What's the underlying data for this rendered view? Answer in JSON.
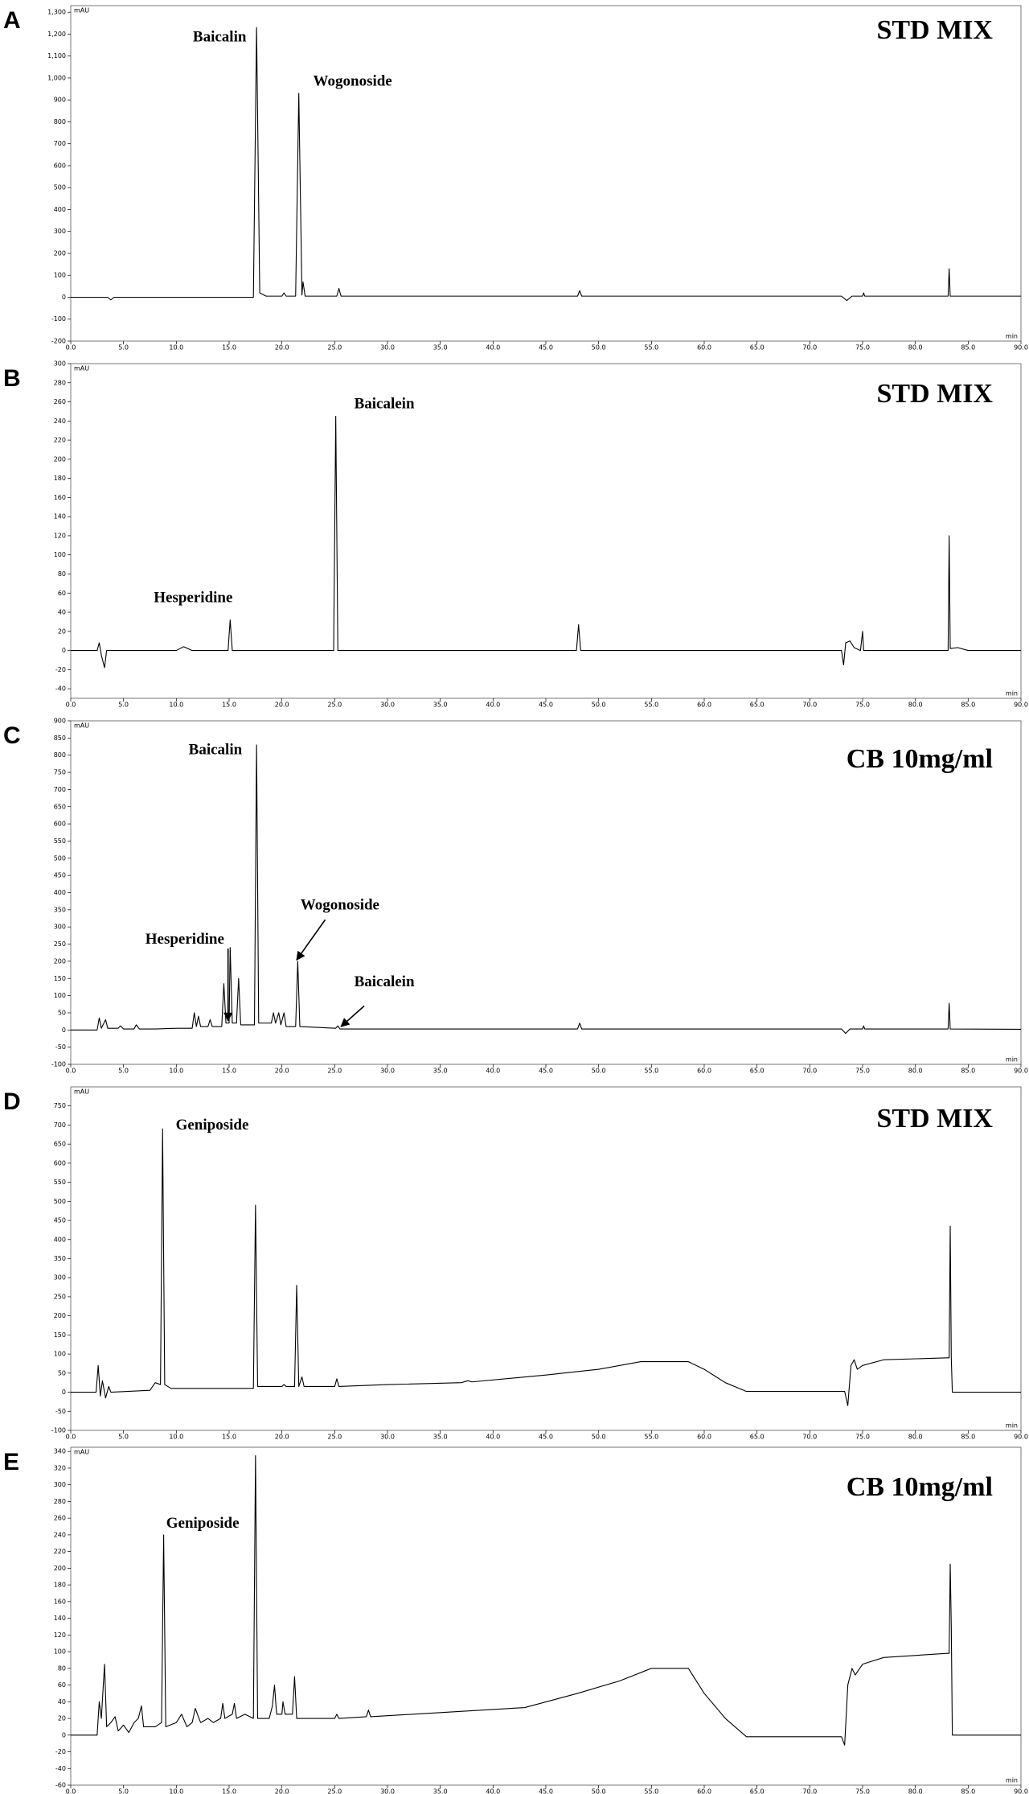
{
  "chart_data": [
    {
      "type": "line",
      "panel": "A",
      "title": "STD MIX",
      "y_label": "mAU",
      "x_label": "min",
      "color": "#000000",
      "annotations": [
        "Baicalin",
        "Wogonoside"
      ],
      "x": [
        0,
        3.5,
        3.8,
        4.1,
        17.3,
        17.6,
        17.9,
        18.5,
        20,
        20.2,
        20.4,
        21.3,
        21.6,
        21.9,
        22.0,
        22.2,
        25.2,
        25.4,
        25.6,
        48,
        48.2,
        48.4,
        73,
        73.5,
        74,
        75,
        75.1,
        75.2,
        83.1,
        83.2,
        83.3,
        90
      ],
      "values": [
        0,
        0,
        -12,
        0,
        0,
        1230,
        20,
        5,
        5,
        20,
        5,
        5,
        930,
        10,
        70,
        5,
        5,
        40,
        5,
        5,
        30,
        5,
        5,
        -15,
        5,
        5,
        20,
        5,
        5,
        130,
        5,
        5
      ],
      "xlim": [
        0,
        90
      ],
      "ylim": [
        -200,
        1330
      ],
      "yticks": [
        -200,
        -100,
        0,
        100,
        200,
        300,
        400,
        500,
        600,
        700,
        800,
        900,
        {
          "value": 1000,
          "label": "1,000"
        },
        {
          "value": 1100,
          "label": "1,100"
        },
        {
          "value": 1200,
          "label": "1,200"
        },
        {
          "value": 1300,
          "label": "1,300"
        }
      ],
      "xticks": [
        {
          "value": 0,
          "label": "0.0"
        },
        {
          "value": 5,
          "label": "5.0"
        },
        {
          "value": 10,
          "label": "10.0"
        },
        {
          "value": 15,
          "label": "15.0"
        },
        {
          "value": 20,
          "label": "20.0"
        },
        {
          "value": 25,
          "label": "25.0"
        },
        {
          "value": 30,
          "label": "30.0"
        },
        {
          "value": 35,
          "label": "35.0"
        },
        {
          "value": 40,
          "label": "40.0"
        },
        {
          "value": 45,
          "label": "45.0"
        },
        {
          "value": 50,
          "label": "50.0"
        },
        {
          "value": 55,
          "label": "55.0"
        },
        {
          "value": 60,
          "label": "60.0"
        },
        {
          "value": 65,
          "label": "65.0"
        },
        {
          "value": 70,
          "label": "70.0"
        },
        {
          "value": 75,
          "label": "75.0"
        },
        {
          "value": 80,
          "label": "80.0"
        },
        {
          "value": 85,
          "label": "85.0"
        },
        {
          "value": 90,
          "label": "90.0"
        }
      ]
    },
    {
      "type": "line",
      "panel": "B",
      "title": "STD MIX",
      "y_label": "mAU",
      "x_label": "min",
      "color": "#000000",
      "annotations": [
        "Baicalein",
        "Hesperidine"
      ],
      "x": [
        0,
        2.5,
        2.7,
        2.9,
        3.2,
        3.4,
        10,
        10.7,
        11.5,
        14.9,
        15.1,
        15.3,
        24.9,
        25.1,
        25.3,
        47.9,
        48.1,
        48.3,
        73,
        73.2,
        73.4,
        73.8,
        74.2,
        74.8,
        75.0,
        75.1,
        83.1,
        83.2,
        83.3,
        84,
        85,
        90
      ],
      "values": [
        0,
        0,
        8,
        -5,
        -18,
        0,
        0,
        4,
        0,
        0,
        32,
        0,
        0,
        245,
        0,
        0,
        27,
        0,
        0,
        -15,
        8,
        10,
        3,
        0,
        20,
        0,
        0,
        120,
        2,
        3,
        0,
        0
      ],
      "xlim": [
        0,
        90
      ],
      "ylim": [
        -50,
        300
      ],
      "yticks": [
        -40,
        -20,
        0,
        20,
        40,
        60,
        80,
        100,
        120,
        140,
        160,
        180,
        200,
        220,
        240,
        260,
        280,
        300
      ],
      "xticks": [
        {
          "value": 0,
          "label": "0.0"
        },
        {
          "value": 5,
          "label": "5.0"
        },
        {
          "value": 10,
          "label": "10.0"
        },
        {
          "value": 15,
          "label": "15.0"
        },
        {
          "value": 20,
          "label": "20.0"
        },
        {
          "value": 25,
          "label": "25.0"
        },
        {
          "value": 30,
          "label": "30.0"
        },
        {
          "value": 35,
          "label": "35.0"
        },
        {
          "value": 40,
          "label": "40.0"
        },
        {
          "value": 45,
          "label": "45.0"
        },
        {
          "value": 50,
          "label": "50.0"
        },
        {
          "value": 55,
          "label": "55.0"
        },
        {
          "value": 60,
          "label": "60.0"
        },
        {
          "value": 65,
          "label": "65.0"
        },
        {
          "value": 70,
          "label": "70.0"
        },
        {
          "value": 75,
          "label": "75.0"
        },
        {
          "value": 80,
          "label": "80.0"
        },
        {
          "value": 85,
          "label": "85.0"
        },
        {
          "value": 90,
          "label": "90.0"
        }
      ]
    },
    {
      "type": "line",
      "panel": "C",
      "title": "CB 10mg/ml",
      "y_label": "mAU",
      "x_label": "min",
      "color": "#000000",
      "annotations": [
        "Baicalin",
        "Hesperidine",
        "Wogonoside",
        "Baicalein"
      ],
      "x": [
        0,
        2.5,
        2.7,
        2.9,
        3.3,
        3.5,
        4.5,
        4.7,
        5,
        6,
        6.2,
        6.5,
        8,
        10,
        11.5,
        11.7,
        11.9,
        12.1,
        12.3,
        13,
        13.2,
        13.4,
        14.3,
        14.5,
        14.7,
        15,
        15.1,
        15.3,
        15.7,
        15.9,
        16.1,
        17.4,
        17.6,
        17.8,
        19,
        19.2,
        19.4,
        19.7,
        19.9,
        20.2,
        20.4,
        21.3,
        21.5,
        21.7,
        25.1,
        25.3,
        25.5,
        48,
        48.2,
        48.4,
        73,
        73.4,
        73.8,
        75,
        75.1,
        75.2,
        83.1,
        83.2,
        83.3,
        90
      ],
      "values": [
        0,
        0,
        35,
        5,
        30,
        5,
        5,
        12,
        3,
        3,
        15,
        3,
        3,
        5,
        5,
        50,
        10,
        40,
        10,
        10,
        30,
        10,
        10,
        135,
        20,
        20,
        240,
        20,
        20,
        150,
        15,
        15,
        830,
        20,
        20,
        50,
        20,
        50,
        15,
        50,
        10,
        10,
        200,
        10,
        5,
        12,
        3,
        3,
        20,
        3,
        3,
        -10,
        3,
        3,
        12,
        3,
        3,
        78,
        3,
        2
      ],
      "xlim": [
        0,
        90
      ],
      "ylim": [
        -100,
        900
      ],
      "yticks": [
        -100,
        -50,
        0,
        50,
        100,
        150,
        200,
        250,
        300,
        350,
        400,
        450,
        500,
        550,
        600,
        650,
        700,
        750,
        800,
        850,
        900
      ],
      "xticks": [
        {
          "value": 0,
          "label": "0.0"
        },
        {
          "value": 5,
          "label": "5.0"
        },
        {
          "value": 10,
          "label": "10.0"
        },
        {
          "value": 15,
          "label": "15.0"
        },
        {
          "value": 20,
          "label": "20.0"
        },
        {
          "value": 25,
          "label": "25.0"
        },
        {
          "value": 30,
          "label": "30.0"
        },
        {
          "value": 35,
          "label": "35.0"
        },
        {
          "value": 40,
          "label": "40.0"
        },
        {
          "value": 45,
          "label": "45.0"
        },
        {
          "value": 50,
          "label": "50.0"
        },
        {
          "value": 55,
          "label": "55.0"
        },
        {
          "value": 60,
          "label": "60.0"
        },
        {
          "value": 65,
          "label": "65.0"
        },
        {
          "value": 70,
          "label": "70.0"
        },
        {
          "value": 75,
          "label": "75.0"
        },
        {
          "value": 80,
          "label": "80.0"
        },
        {
          "value": 85,
          "label": "85.0"
        },
        {
          "value": 90,
          "label": "90.0"
        }
      ]
    },
    {
      "type": "line",
      "panel": "D",
      "title": "STD MIX",
      "y_label": "mAU",
      "x_label": "min",
      "color": "#000000",
      "annotations": [
        "Geniposide"
      ],
      "x": [
        0,
        2.4,
        2.6,
        2.8,
        3,
        3.3,
        3.6,
        3.8,
        7.5,
        8,
        8.5,
        8.7,
        8.9,
        9.5,
        17.3,
        17.5,
        17.7,
        20,
        20.2,
        20.4,
        21.2,
        21.4,
        21.6,
        21.9,
        22.1,
        25,
        25.2,
        25.4,
        30,
        37,
        37.6,
        38,
        45,
        50,
        54,
        58.5,
        60,
        62,
        64,
        73.3,
        73.6,
        73.9,
        74.2,
        74.5,
        75,
        77,
        83,
        83.2,
        83.3,
        83.4,
        83.5,
        85,
        90
      ],
      "values": [
        0,
        0,
        70,
        -10,
        30,
        -15,
        15,
        0,
        5,
        25,
        20,
        690,
        20,
        10,
        10,
        490,
        15,
        15,
        20,
        15,
        15,
        280,
        15,
        40,
        15,
        15,
        35,
        15,
        20,
        25,
        30,
        27,
        45,
        60,
        80,
        80,
        60,
        25,
        2,
        2,
        -35,
        70,
        85,
        60,
        70,
        85,
        90,
        90,
        435,
        90,
        0,
        0,
        0
      ],
      "xlim": [
        0,
        90
      ],
      "ylim": [
        -100,
        800
      ],
      "yticks": [
        -100,
        -50,
        0,
        50,
        100,
        150,
        200,
        250,
        300,
        350,
        400,
        450,
        500,
        550,
        600,
        650,
        700,
        750
      ],
      "xticks": [
        {
          "value": 0,
          "label": "0.0"
        },
        {
          "value": 5,
          "label": "5.0"
        },
        {
          "value": 10,
          "label": "10.0"
        },
        {
          "value": 15,
          "label": "15.0"
        },
        {
          "value": 20,
          "label": "20.0"
        },
        {
          "value": 25,
          "label": "25.0"
        },
        {
          "value": 30,
          "label": "30.0"
        },
        {
          "value": 35,
          "label": "35.0"
        },
        {
          "value": 40,
          "label": "40.0"
        },
        {
          "value": 45,
          "label": "45.0"
        },
        {
          "value": 50,
          "label": "50.0"
        },
        {
          "value": 55,
          "label": "55.0"
        },
        {
          "value": 60,
          "label": "60.0"
        },
        {
          "value": 65,
          "label": "65.0"
        },
        {
          "value": 70,
          "label": "70.0"
        },
        {
          "value": 75,
          "label": "75.0"
        },
        {
          "value": 80,
          "label": "80.0"
        },
        {
          "value": 85,
          "label": "85.0"
        },
        {
          "value": 90,
          "label": "90.0"
        }
      ]
    },
    {
      "type": "line",
      "panel": "E",
      "title": "CB 10mg/ml",
      "y_label": "mAU",
      "x_label": "min",
      "color": "#000000",
      "annotations": [
        "Geniposide"
      ],
      "x": [
        0,
        2.5,
        2.7,
        2.9,
        3.2,
        3.4,
        3.8,
        4.2,
        4.5,
        5,
        5.5,
        6,
        6.4,
        6.7,
        6.9,
        8,
        8.6,
        8.8,
        9,
        10,
        10.5,
        11,
        11.5,
        11.8,
        12,
        12.3,
        13,
        13.5,
        14.2,
        14.4,
        14.6,
        15.3,
        15.5,
        15.7,
        16.5,
        17.3,
        17.5,
        17.7,
        18.8,
        19.1,
        19.3,
        19.5,
        20,
        20.1,
        20.3,
        21,
        21.2,
        21.4,
        25,
        25.2,
        25.4,
        28,
        28.2,
        28.4,
        35,
        43,
        48,
        52,
        55,
        58.5,
        60,
        62,
        64,
        73,
        73.3,
        73.6,
        74,
        74.3,
        75,
        77,
        83,
        83.2,
        83.3,
        83.4,
        83.5,
        85,
        90
      ],
      "values": [
        0,
        0,
        40,
        20,
        85,
        10,
        15,
        22,
        5,
        12,
        3,
        15,
        20,
        35,
        10,
        10,
        15,
        240,
        10,
        15,
        25,
        10,
        15,
        32,
        25,
        15,
        20,
        15,
        20,
        38,
        20,
        25,
        38,
        20,
        25,
        20,
        335,
        20,
        20,
        35,
        60,
        25,
        25,
        40,
        25,
        25,
        70,
        20,
        20,
        25,
        20,
        22,
        30,
        22,
        27,
        33,
        50,
        65,
        80,
        80,
        50,
        20,
        -2,
        -2,
        -12,
        60,
        80,
        72,
        85,
        93,
        98,
        98,
        205,
        130,
        0,
        0,
        0
      ],
      "xlim": [
        0,
        90
      ],
      "ylim": [
        -60,
        345
      ],
      "yticks": [
        -60,
        -40,
        -20,
        0,
        20,
        40,
        60,
        80,
        100,
        120,
        140,
        160,
        180,
        200,
        220,
        240,
        260,
        280,
        300,
        320,
        340
      ],
      "xticks": [
        {
          "value": 0,
          "label": "0.0"
        },
        {
          "value": 5,
          "label": "5.0"
        },
        {
          "value": 10,
          "label": "10.0"
        },
        {
          "value": 15,
          "label": "15.0"
        },
        {
          "value": 20,
          "label": "20.0"
        },
        {
          "value": 25,
          "label": "25.0"
        },
        {
          "value": 30,
          "label": "30.0"
        },
        {
          "value": 35,
          "label": "35.0"
        },
        {
          "value": 40,
          "label": "40.0"
        },
        {
          "value": 45,
          "label": "45.0"
        },
        {
          "value": 50,
          "label": "50.0"
        },
        {
          "value": 55,
          "label": "55.0"
        },
        {
          "value": 60,
          "label": "60.0"
        },
        {
          "value": 65,
          "label": "65.0"
        },
        {
          "value": 70,
          "label": "70.0"
        },
        {
          "value": 75,
          "label": "75.0"
        },
        {
          "value": 80,
          "label": "80.0"
        },
        {
          "value": 85,
          "label": "85.0"
        },
        {
          "value": 90,
          "label": "90.0"
        }
      ]
    }
  ]
}
